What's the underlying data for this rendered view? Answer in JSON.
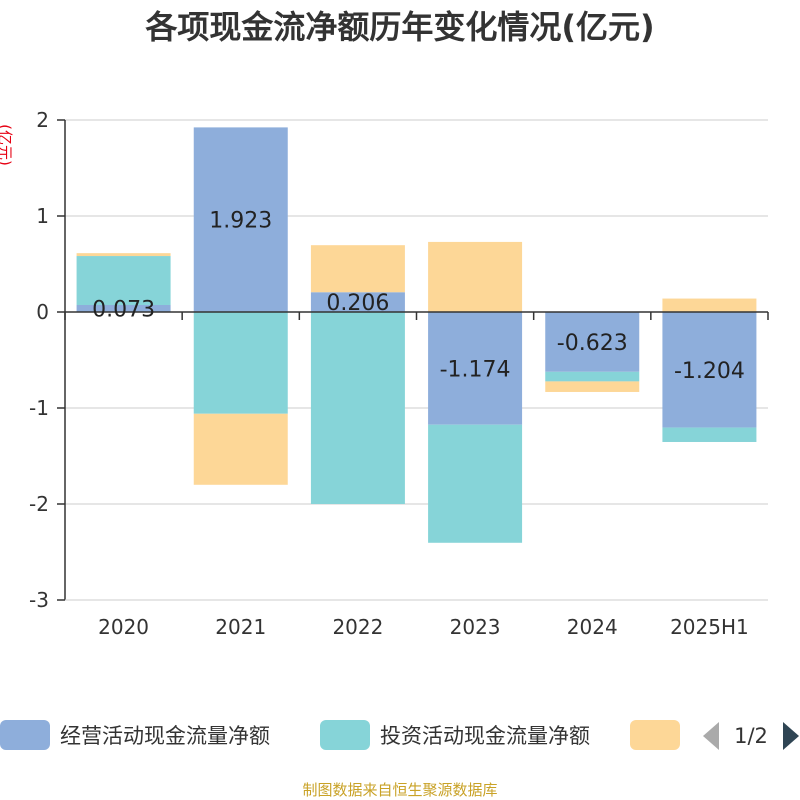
{
  "chart_data": {
    "type": "bar",
    "stacked": true,
    "title": "各项现金流净额历年变化情况(亿元)",
    "ylabel": "(亿元)",
    "categories": [
      "2020",
      "2021",
      "2022",
      "2023",
      "2024",
      "2025H1"
    ],
    "ylim": [
      -3,
      2
    ],
    "yticks": [
      2,
      1,
      0,
      -1,
      -2,
      -3
    ],
    "grid": true,
    "series": [
      {
        "name": "经营活动现金流量净额",
        "color": "#8eaedb",
        "values": [
          0.073,
          1.923,
          0.206,
          -1.174,
          -0.623,
          -1.204
        ],
        "labels": [
          "0.073",
          "1.923",
          "0.206",
          "-1.174",
          "-0.623",
          "-1.204"
        ]
      },
      {
        "name": "投资活动现金流量净额",
        "color": "#86d4d8",
        "values": [
          0.51,
          -1.06,
          -2.0,
          -1.23,
          -0.1,
          -0.15
        ]
      },
      {
        "color": "#fdd797",
        "values": [
          0.03,
          -0.74,
          0.49,
          0.73,
          -0.11,
          0.14
        ]
      }
    ],
    "legend": {
      "position": "bottom",
      "page": "1/2"
    },
    "source": "制图数据来自恒生聚源数据库"
  }
}
